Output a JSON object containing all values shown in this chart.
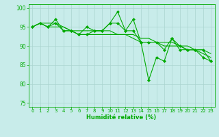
{
  "background_color": "#c8ecea",
  "grid_color": "#aad4d0",
  "line_color": "#00aa00",
  "xlabel": "Humidité relative (%)",
  "ylim": [
    74,
    101
  ],
  "xlim": [
    -0.5,
    23.5
  ],
  "yticks": [
    75,
    80,
    85,
    90,
    95,
    100
  ],
  "xticks": [
    0,
    1,
    2,
    3,
    4,
    5,
    6,
    7,
    8,
    9,
    10,
    11,
    12,
    13,
    14,
    15,
    16,
    17,
    18,
    19,
    20,
    21,
    22,
    23
  ],
  "series": [
    [
      95,
      96,
      95,
      97,
      94,
      94,
      93,
      93,
      94,
      94,
      96,
      99,
      94,
      97,
      91,
      81,
      87,
      86,
      92,
      89,
      89,
      89,
      87,
      86
    ],
    [
      95,
      96,
      95,
      96,
      94,
      94,
      93,
      95,
      94,
      94,
      96,
      96,
      94,
      94,
      91,
      91,
      91,
      89,
      92,
      90,
      89,
      89,
      89,
      86
    ],
    [
      95,
      96,
      96,
      96,
      95,
      94,
      93,
      93,
      93,
      93,
      93,
      93,
      93,
      92,
      91,
      91,
      91,
      90,
      90,
      90,
      89,
      89,
      88,
      87
    ],
    [
      95,
      96,
      95,
      95,
      95,
      94,
      94,
      94,
      94,
      94,
      94,
      93,
      93,
      93,
      92,
      92,
      91,
      91,
      91,
      90,
      90,
      89,
      89,
      88
    ]
  ]
}
